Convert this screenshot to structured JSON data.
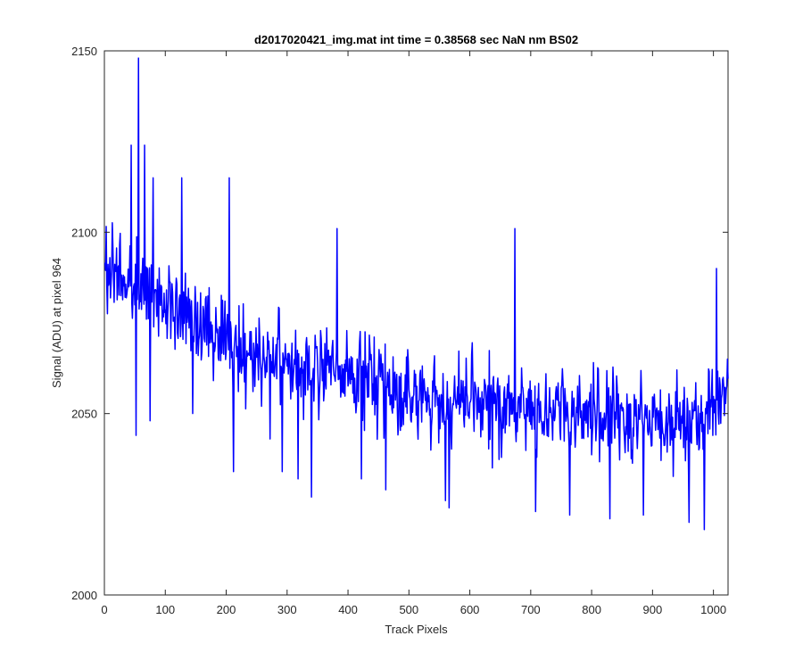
{
  "chart_data": {
    "type": "line",
    "title": "d2017020421_img.mat int time = 0.38568 sec  NaN nm BS02",
    "xlabel": "Track Pixels",
    "ylabel": "Signal (ADU) at pixel 964",
    "xlim": [
      0,
      1024
    ],
    "ylim": [
      2000,
      2150
    ],
    "xticks": [
      0,
      100,
      200,
      300,
      400,
      500,
      600,
      700,
      800,
      900,
      1000
    ],
    "yticks": [
      2000,
      2050,
      2100,
      2150
    ],
    "grid": false,
    "series": [
      {
        "color": "#0000ff",
        "x": [
          1,
          50,
          100,
          150,
          200,
          250,
          300,
          350,
          400,
          450,
          500,
          550,
          600,
          650,
          700,
          750,
          800,
          850,
          900,
          950,
          1000,
          1024
        ],
        "y": [
          2088,
          2085,
          2082,
          2076,
          2070,
          2066,
          2063,
          2062,
          2061,
          2060,
          2055,
          2053,
          2053,
          2052,
          2051,
          2051,
          2050,
          2049,
          2048,
          2048,
          2053,
          2058
        ],
        "noise_amplitude": 11,
        "spikes": [
          {
            "x": 44,
            "y": 2124
          },
          {
            "x": 52,
            "y": 2044
          },
          {
            "x": 56,
            "y": 2148
          },
          {
            "x": 66,
            "y": 2124
          },
          {
            "x": 75,
            "y": 2048
          },
          {
            "x": 80,
            "y": 2115
          },
          {
            "x": 127,
            "y": 2115
          },
          {
            "x": 145,
            "y": 2050
          },
          {
            "x": 205,
            "y": 2115
          },
          {
            "x": 212,
            "y": 2034
          },
          {
            "x": 258,
            "y": 2052
          },
          {
            "x": 272,
            "y": 2043
          },
          {
            "x": 292,
            "y": 2034
          },
          {
            "x": 318,
            "y": 2032
          },
          {
            "x": 340,
            "y": 2027
          },
          {
            "x": 382,
            "y": 2101
          },
          {
            "x": 422,
            "y": 2032
          },
          {
            "x": 462,
            "y": 2029
          },
          {
            "x": 560,
            "y": 2026
          },
          {
            "x": 566,
            "y": 2024
          },
          {
            "x": 674,
            "y": 2101
          },
          {
            "x": 708,
            "y": 2023
          },
          {
            "x": 764,
            "y": 2022
          },
          {
            "x": 830,
            "y": 2021
          },
          {
            "x": 885,
            "y": 2022
          },
          {
            "x": 960,
            "y": 2020
          },
          {
            "x": 985,
            "y": 2018
          },
          {
            "x": 1005,
            "y": 2090
          }
        ]
      }
    ]
  }
}
